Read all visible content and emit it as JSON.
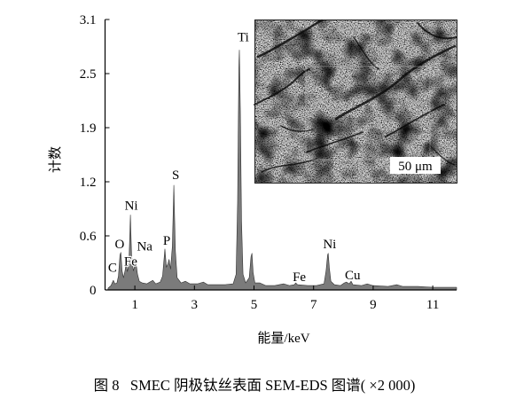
{
  "figure": {
    "caption": "图 8   SMEC 阴极钛丝表面 SEM-EDS 图谱( ×2 000)"
  },
  "inset": {
    "scale_bar_label": "50 μm"
  },
  "colors": {
    "spectrum_fill": "#7b7b7b",
    "spectrum_stroke": "#303030"
  },
  "chart_data": {
    "type": "area",
    "xlabel": "能量/keV",
    "ylabel": "计数",
    "xlim": [
      0,
      11.8
    ],
    "ylim": [
      0,
      3.1
    ],
    "x_ticks": [
      1,
      3,
      5,
      7,
      9,
      11
    ],
    "x_tick_labels": [
      "1",
      "3",
      "5",
      "7",
      "9",
      "11"
    ],
    "y_tick_labels": [
      "0",
      "0.6",
      "1.2",
      "1.9",
      "2.5",
      "3.1"
    ],
    "grid": false,
    "series": [
      {
        "x": [
          0.1,
          0.2,
          0.25,
          0.28,
          0.33,
          0.4,
          0.45,
          0.5,
          0.53,
          0.57,
          0.62,
          0.67,
          0.71,
          0.75,
          0.8,
          0.85,
          0.89,
          0.95,
          1.0,
          1.04,
          1.09,
          1.15,
          1.25,
          1.4,
          1.5,
          1.6,
          1.7,
          1.85,
          1.93,
          2.01,
          2.06,
          2.11,
          2.15,
          2.2,
          2.26,
          2.31,
          2.36,
          2.42,
          2.55,
          2.7,
          2.85,
          3.1,
          3.3,
          3.45,
          3.7,
          4.0,
          4.3,
          4.4,
          4.45,
          4.49,
          4.51,
          4.54,
          4.58,
          4.63,
          4.72,
          4.84,
          4.9,
          4.93,
          4.97,
          5.03,
          5.2,
          5.4,
          5.7,
          6.0,
          6.2,
          6.35,
          6.4,
          6.46,
          6.8,
          7.1,
          7.35,
          7.42,
          7.47,
          7.49,
          7.53,
          7.58,
          7.7,
          7.9,
          8.03,
          8.1,
          8.2,
          8.26,
          8.32,
          8.6,
          8.8,
          9.0,
          9.5,
          9.8,
          10.0,
          10.5,
          11.0,
          11.5,
          11.8
        ],
        "y": [
          0.02,
          0.05,
          0.09,
          0.11,
          0.07,
          0.08,
          0.16,
          0.4,
          0.43,
          0.22,
          0.14,
          0.22,
          0.31,
          0.21,
          0.3,
          0.86,
          0.4,
          0.22,
          0.28,
          0.31,
          0.18,
          0.1,
          0.08,
          0.07,
          0.09,
          0.11,
          0.07,
          0.09,
          0.16,
          0.47,
          0.26,
          0.3,
          0.35,
          0.24,
          0.5,
          1.2,
          0.45,
          0.14,
          0.08,
          0.1,
          0.07,
          0.07,
          0.09,
          0.06,
          0.06,
          0.06,
          0.07,
          0.18,
          1.0,
          2.55,
          2.75,
          2.05,
          0.8,
          0.18,
          0.08,
          0.14,
          0.38,
          0.42,
          0.2,
          0.08,
          0.08,
          0.05,
          0.05,
          0.07,
          0.05,
          0.06,
          0.08,
          0.06,
          0.05,
          0.05,
          0.07,
          0.22,
          0.4,
          0.42,
          0.25,
          0.1,
          0.06,
          0.05,
          0.08,
          0.09,
          0.07,
          0.1,
          0.06,
          0.05,
          0.07,
          0.05,
          0.04,
          0.06,
          0.04,
          0.04,
          0.03,
          0.03,
          0.03
        ]
      }
    ],
    "annotations": [
      {
        "text": "C",
        "x": 0.25,
        "y": 0.21
      },
      {
        "text": "O",
        "x": 0.49,
        "y": 0.48
      },
      {
        "text": "Fe",
        "x": 0.86,
        "y": 0.28
      },
      {
        "text": "Ni",
        "x": 0.88,
        "y": 0.92
      },
      {
        "text": "Na",
        "x": 1.33,
        "y": 0.45
      },
      {
        "text": "P",
        "x": 2.07,
        "y": 0.52
      },
      {
        "text": "S",
        "x": 2.37,
        "y": 1.27
      },
      {
        "text": "Ti",
        "x": 4.64,
        "y": 2.85
      },
      {
        "text": "Fe",
        "x": 6.52,
        "y": 0.1
      },
      {
        "text": "Ni",
        "x": 7.54,
        "y": 0.48
      },
      {
        "text": "Cu",
        "x": 8.31,
        "y": 0.12
      }
    ]
  }
}
